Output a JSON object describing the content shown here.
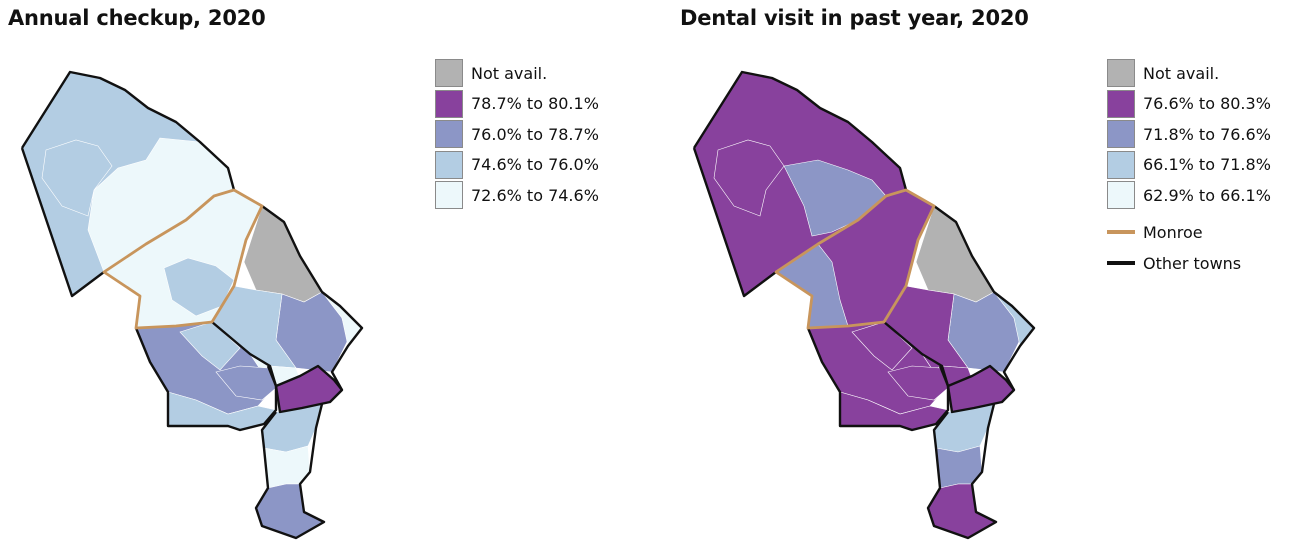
{
  "colors": {
    "not_avail": "#B2B2B2",
    "q4": "#88419D",
    "q3": "#8C96C6",
    "q2": "#B3CDE3",
    "q1": "#EDF8FB",
    "monroe": "#C8955C",
    "other_towns": "#111111"
  },
  "maps": [
    {
      "title": "Annual checkup, 2020",
      "legend": [
        {
          "label": "Not avail.",
          "color_key": "not_avail"
        },
        {
          "label": "78.7% to 80.1%",
          "color_key": "q4"
        },
        {
          "label": "76.0% to 78.7%",
          "color_key": "q3"
        },
        {
          "label": "74.6% to 76.0%",
          "color_key": "q2"
        },
        {
          "label": "72.6% to 74.6%",
          "color_key": "q1"
        }
      ],
      "regions": {
        "northwest": "q2",
        "north-central": "q1",
        "northwest-inner": "q2",
        "monroe": "q1",
        "monroe-inner": "q2",
        "east-strip": "not_avail",
        "east-middle": "q3",
        "east-tip": "q1",
        "central-south": "q2",
        "central-south-light": "q1",
        "south-west": "q3",
        "south-west-inner": "q2",
        "south-central": "q3",
        "south-bottom": "q2",
        "southeast-town": "q4",
        "tail-upper": "q2",
        "tail-middle": "q1",
        "tail-bottom": "q3"
      }
    },
    {
      "title": "Dental visit in past year, 2020",
      "legend": [
        {
          "label": "Not avail.",
          "color_key": "not_avail"
        },
        {
          "label": "76.6% to 80.3%",
          "color_key": "q4"
        },
        {
          "label": "71.8% to 76.6%",
          "color_key": "q3"
        },
        {
          "label": "66.1% to 71.8%",
          "color_key": "q2"
        },
        {
          "label": "62.9% to 66.1%",
          "color_key": "q1"
        }
      ],
      "lines": [
        {
          "label": "Monroe",
          "color_key": "monroe"
        },
        {
          "label": "Other towns",
          "color_key": "other_towns"
        }
      ],
      "regions": {
        "northwest": "q4",
        "north-central": "q3",
        "northwest-inner": "q4",
        "monroe": "q4",
        "monroe-inner": "q3",
        "east-strip": "not_avail",
        "east-middle": "q3",
        "east-tip": "q2",
        "central-south": "q4",
        "central-south-light": "q4",
        "south-west": "q4",
        "south-west-inner": "q4",
        "south-central": "q4",
        "south-bottom": "q4",
        "southeast-town": "q4",
        "tail-upper": "q2",
        "tail-middle": "q3",
        "tail-bottom": "q4"
      }
    }
  ]
}
